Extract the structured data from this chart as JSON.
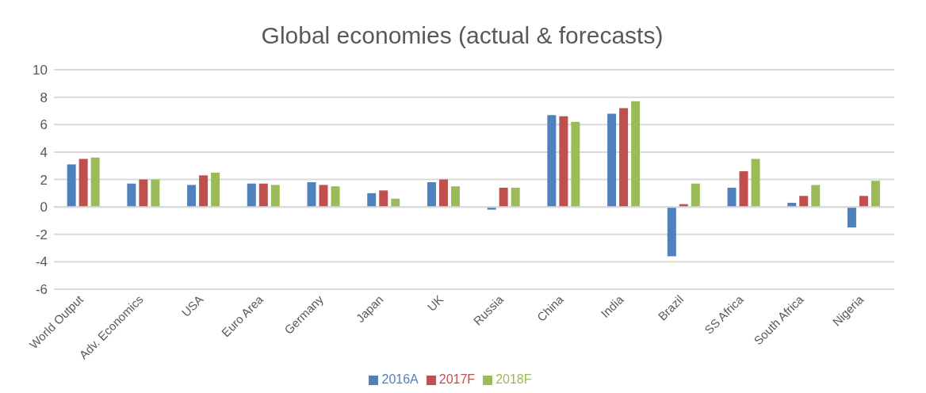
{
  "chart_data": {
    "type": "bar",
    "title": "Global economies (actual & forecasts)",
    "categories": [
      "World Output",
      "Adv. Economics",
      "USA",
      "Euro Area",
      "Germany",
      "Japan",
      "UK",
      "Russia",
      "China",
      "India",
      "Brazil",
      "SS Africa",
      "South Africa",
      "Nigeria"
    ],
    "series": [
      {
        "name": "2016A",
        "color": "#4f81bd",
        "values": [
          3.1,
          1.7,
          1.6,
          1.7,
          1.8,
          1.0,
          1.8,
          -0.2,
          6.7,
          6.8,
          -3.6,
          1.4,
          0.3,
          -1.5
        ]
      },
      {
        "name": "2017F",
        "color": "#c0504d",
        "values": [
          3.5,
          2.0,
          2.3,
          1.7,
          1.6,
          1.2,
          2.0,
          1.4,
          6.6,
          7.2,
          0.2,
          2.6,
          0.8,
          0.8
        ]
      },
      {
        "name": "2018F",
        "color": "#9bbb59",
        "values": [
          3.6,
          2.0,
          2.5,
          1.6,
          1.5,
          0.6,
          1.5,
          1.4,
          6.2,
          7.7,
          1.7,
          3.5,
          1.6,
          1.9
        ]
      }
    ],
    "ylim": [
      -6,
      10
    ],
    "yticks": [
      -6,
      -4,
      -2,
      0,
      2,
      4,
      6,
      8,
      10
    ],
    "grid": "y",
    "legend": "bottom"
  }
}
